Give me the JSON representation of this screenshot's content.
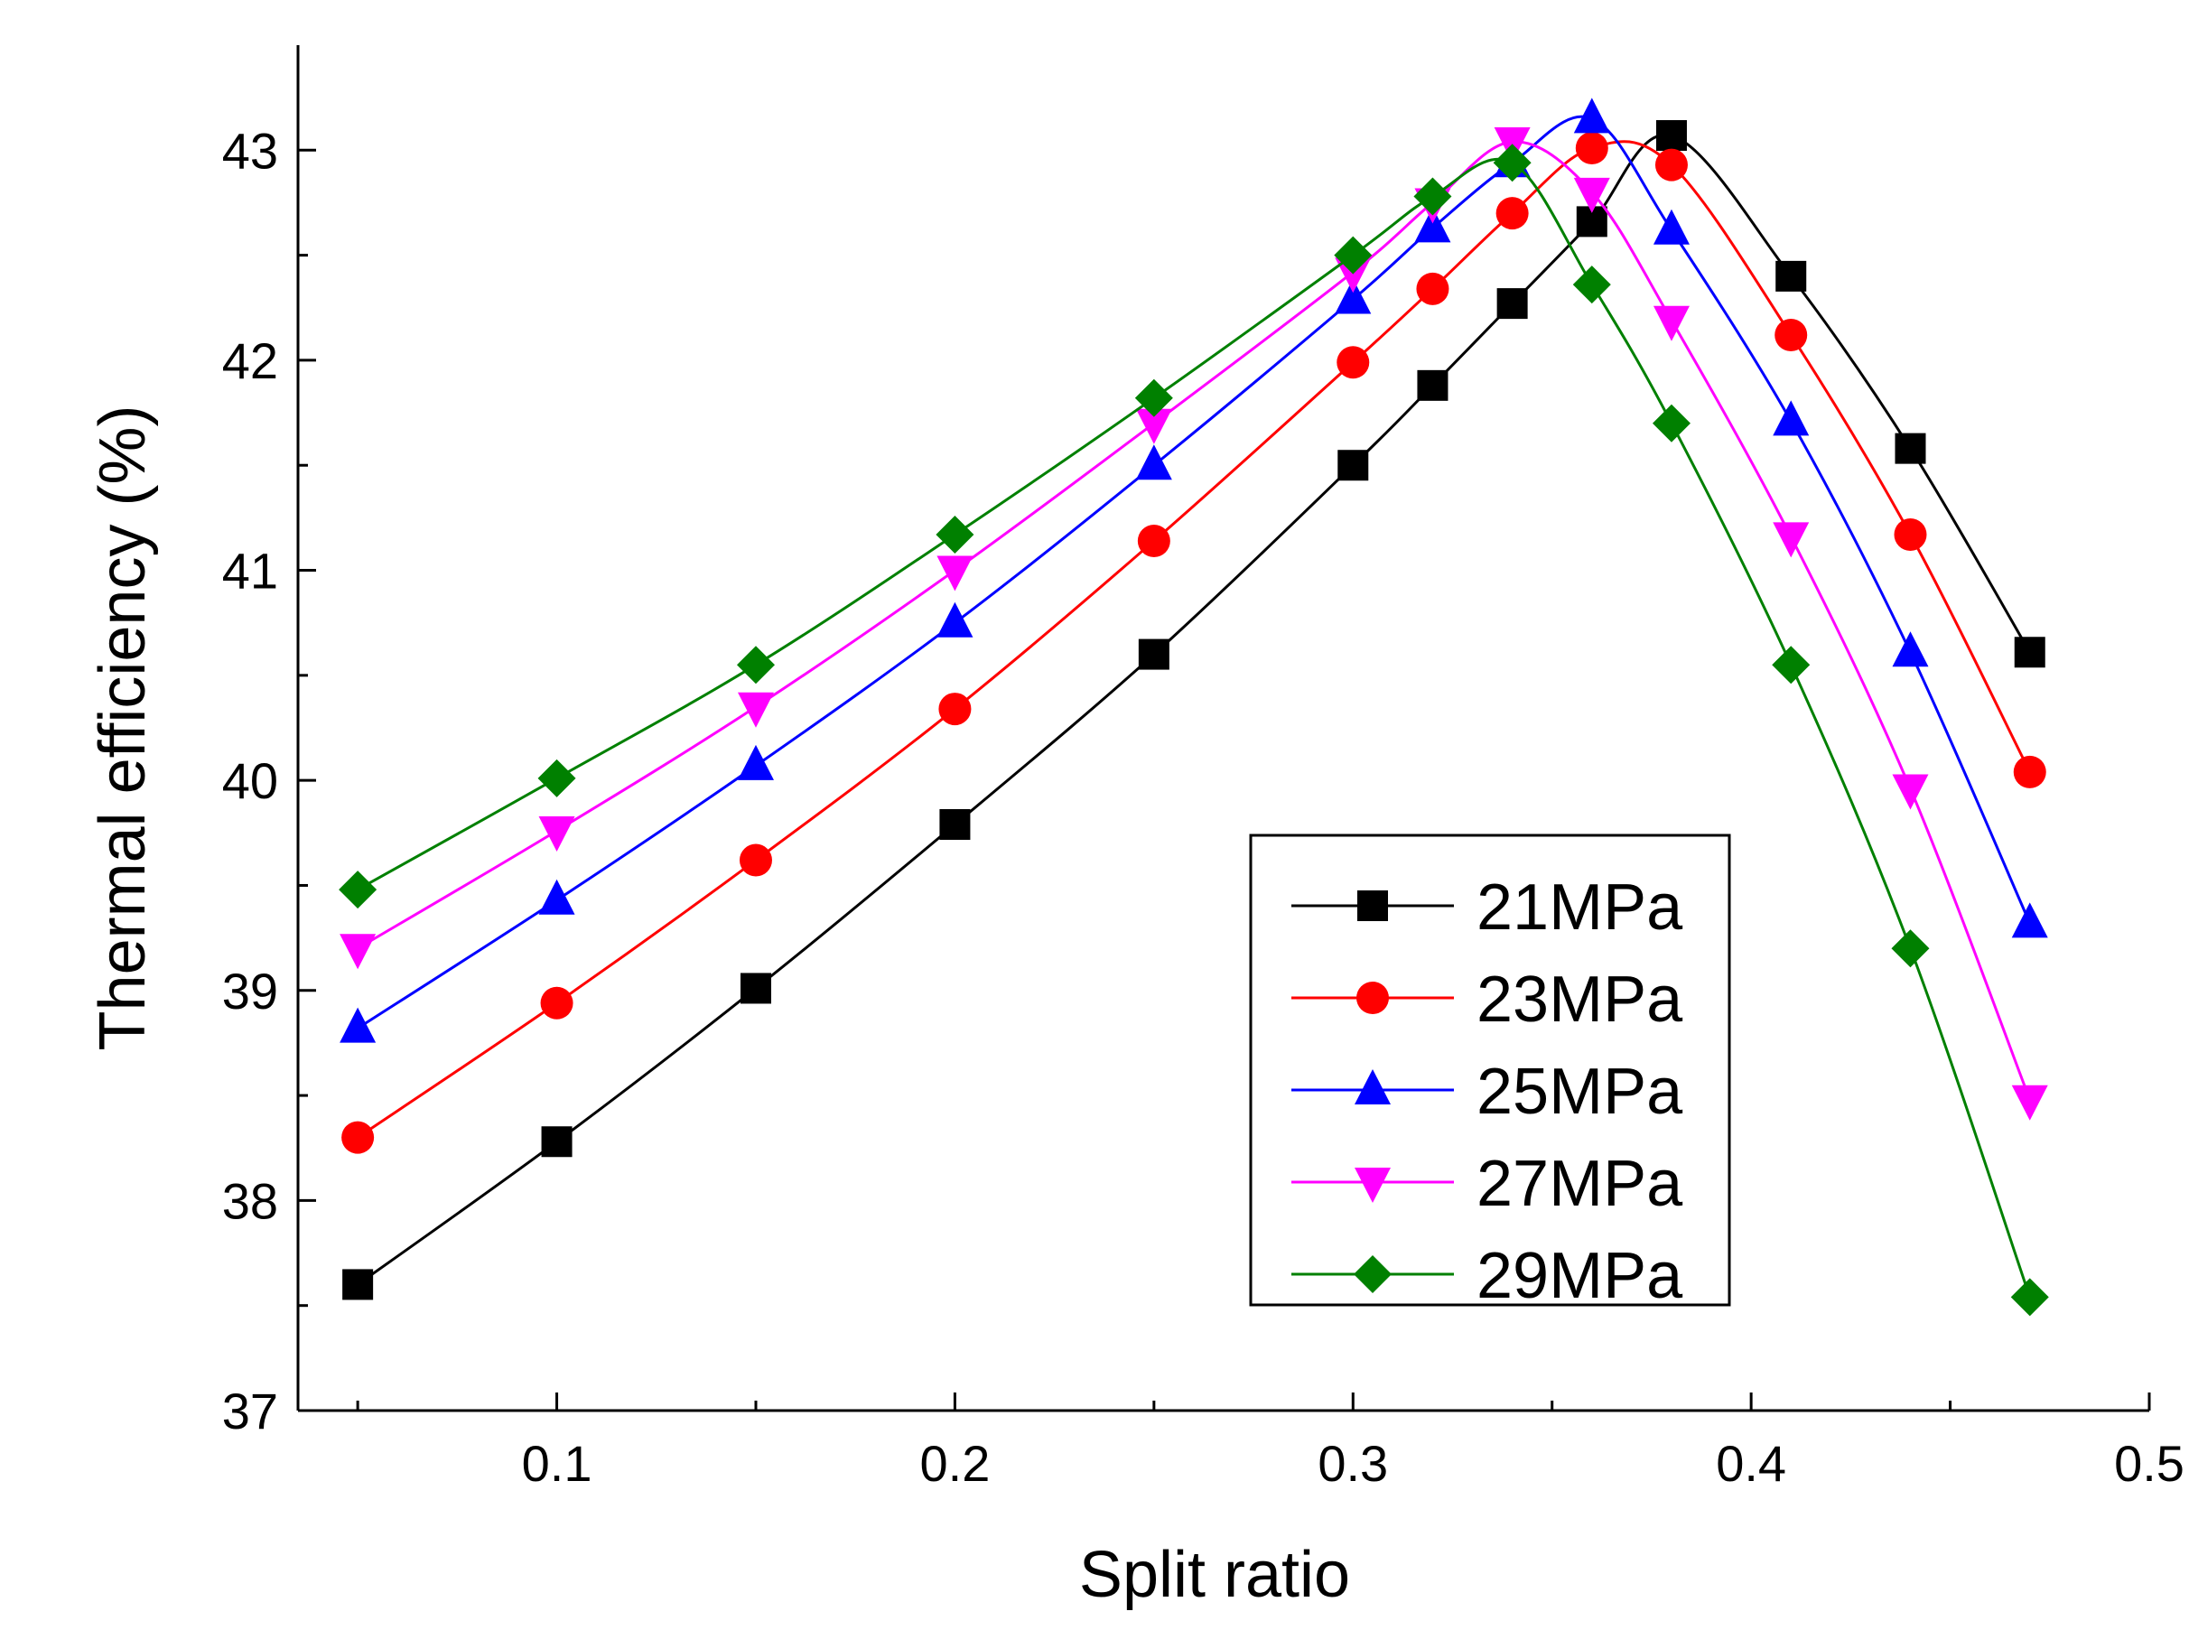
{
  "chart_data": {
    "type": "line",
    "title": "",
    "xlabel": "Split ratio",
    "ylabel": "Thermal efficiency (%)",
    "xlim": [
      0.035,
      0.5
    ],
    "ylim": [
      37,
      43.5
    ],
    "xticks": [
      0.1,
      0.2,
      0.3,
      0.4,
      0.5
    ],
    "xtick_labels": [
      "0.1",
      "0.2",
      "0.3",
      "0.4",
      "0.5"
    ],
    "yticks": [
      37,
      38,
      39,
      40,
      41,
      42,
      43
    ],
    "ytick_labels": [
      "37",
      "38",
      "39",
      "40",
      "41",
      "42",
      "43"
    ],
    "grid": false,
    "legend_position": "bottom-right",
    "series": [
      {
        "name": "21MPa",
        "color": "#000000",
        "marker": "square",
        "x": [
          0.05,
          0.1,
          0.15,
          0.2,
          0.25,
          0.3,
          0.32,
          0.34,
          0.36,
          0.38,
          0.41,
          0.44,
          0.47
        ],
        "y": [
          37.6,
          38.28,
          39.01,
          39.79,
          40.6,
          41.5,
          41.88,
          42.27,
          42.66,
          43.07,
          42.4,
          41.58,
          40.61
        ]
      },
      {
        "name": "23MPa",
        "color": "#ff0000",
        "marker": "circle",
        "x": [
          0.05,
          0.1,
          0.15,
          0.2,
          0.25,
          0.3,
          0.32,
          0.34,
          0.36,
          0.38,
          0.41,
          0.44,
          0.47
        ],
        "y": [
          38.3,
          38.94,
          39.62,
          40.34,
          41.14,
          41.99,
          42.34,
          42.7,
          43.01,
          42.93,
          42.12,
          41.17,
          40.04
        ]
      },
      {
        "name": "25MPa",
        "color": "#0000ff",
        "marker": "triangle-up",
        "x": [
          0.05,
          0.1,
          0.15,
          0.2,
          0.25,
          0.3,
          0.32,
          0.34,
          0.36,
          0.38,
          0.41,
          0.44,
          0.47
        ],
        "y": [
          38.82,
          39.43,
          40.07,
          40.75,
          41.5,
          42.29,
          42.63,
          42.94,
          43.15,
          42.62,
          41.71,
          40.61,
          39.32
        ]
      },
      {
        "name": "27MPa",
        "color": "#ff00ff",
        "marker": "triangle-down",
        "x": [
          0.05,
          0.1,
          0.15,
          0.2,
          0.25,
          0.3,
          0.32,
          0.34,
          0.36,
          0.38,
          0.41,
          0.44,
          0.47
        ],
        "y": [
          39.2,
          39.76,
          40.35,
          41.0,
          41.7,
          42.42,
          42.75,
          43.04,
          42.8,
          42.19,
          41.16,
          39.96,
          38.48
        ]
      },
      {
        "name": "29MPa",
        "color": "#008000",
        "marker": "diamond",
        "x": [
          0.05,
          0.1,
          0.15,
          0.2,
          0.25,
          0.3,
          0.32,
          0.34,
          0.36,
          0.38,
          0.41,
          0.44,
          0.47
        ],
        "y": [
          39.48,
          40.01,
          40.55,
          41.17,
          41.82,
          42.5,
          42.78,
          42.94,
          42.36,
          41.7,
          40.55,
          39.2,
          37.54
        ]
      }
    ]
  }
}
